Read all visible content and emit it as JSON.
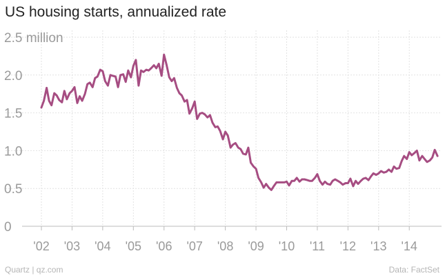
{
  "title": "US housing starts, annualized rate",
  "footer": {
    "source_left": "Quartz | qz.com",
    "source_right": "Data: FactSet"
  },
  "colors": {
    "series": "#a64d82",
    "grid": "#e2e2e2",
    "axis": "#bbbbbb",
    "text": "#222222",
    "tick": "#9a9a9a"
  },
  "chart_data": {
    "type": "line",
    "title": "US housing starts, annualized rate",
    "xlabel": "",
    "ylabel": "",
    "ylim": [
      0,
      2.5
    ],
    "xlim": [
      2002.0,
      2014.85
    ],
    "grid": true,
    "y_ticks": [
      {
        "value": 2.5,
        "label": "2.5 million"
      },
      {
        "value": 2.0,
        "label": "2.0"
      },
      {
        "value": 1.5,
        "label": "1.5"
      },
      {
        "value": 1.0,
        "label": "1.0"
      },
      {
        "value": 0.5,
        "label": "0.5"
      },
      {
        "value": 0,
        "label": "0"
      }
    ],
    "x_ticks": [
      {
        "value": 2002,
        "label": "'02"
      },
      {
        "value": 2003,
        "label": "'03"
      },
      {
        "value": 2004,
        "label": "'04"
      },
      {
        "value": 2005,
        "label": "'05"
      },
      {
        "value": 2006,
        "label": "'06"
      },
      {
        "value": 2007,
        "label": "'07"
      },
      {
        "value": 2008,
        "label": "'08"
      },
      {
        "value": 2009,
        "label": "'09"
      },
      {
        "value": 2010,
        "label": "'10"
      },
      {
        "value": 2011,
        "label": "'11"
      },
      {
        "value": 2012,
        "label": "'12"
      },
      {
        "value": 2013,
        "label": "'13"
      },
      {
        "value": 2014,
        "label": "'14"
      }
    ],
    "series": [
      {
        "values": [
          [
            2002.0,
            1.57
          ],
          [
            2002.08,
            1.66
          ],
          [
            2002.17,
            1.83
          ],
          [
            2002.25,
            1.66
          ],
          [
            2002.33,
            1.6
          ],
          [
            2002.42,
            1.76
          ],
          [
            2002.5,
            1.73
          ],
          [
            2002.58,
            1.67
          ],
          [
            2002.67,
            1.64
          ],
          [
            2002.75,
            1.79
          ],
          [
            2002.83,
            1.68
          ],
          [
            2002.92,
            1.76
          ],
          [
            2003.0,
            1.79
          ],
          [
            2003.08,
            1.84
          ],
          [
            2003.17,
            1.63
          ],
          [
            2003.25,
            1.72
          ],
          [
            2003.33,
            1.66
          ],
          [
            2003.42,
            1.75
          ],
          [
            2003.5,
            1.88
          ],
          [
            2003.58,
            1.9
          ],
          [
            2003.67,
            1.84
          ],
          [
            2003.75,
            1.96
          ],
          [
            2003.83,
            1.98
          ],
          [
            2003.92,
            2.07
          ],
          [
            2004.0,
            2.05
          ],
          [
            2004.08,
            1.92
          ],
          [
            2004.17,
            1.86
          ],
          [
            2004.25,
            2.0
          ],
          [
            2004.33,
            1.99
          ],
          [
            2004.42,
            1.98
          ],
          [
            2004.5,
            1.84
          ],
          [
            2004.58,
            2.0
          ],
          [
            2004.67,
            2.01
          ],
          [
            2004.75,
            1.91
          ],
          [
            2004.83,
            2.06
          ],
          [
            2004.92,
            1.97
          ],
          [
            2005.0,
            2.12
          ],
          [
            2005.08,
            2.2
          ],
          [
            2005.17,
            1.86
          ],
          [
            2005.25,
            2.06
          ],
          [
            2005.33,
            2.04
          ],
          [
            2005.42,
            2.07
          ],
          [
            2005.5,
            2.06
          ],
          [
            2005.58,
            2.09
          ],
          [
            2005.67,
            2.13
          ],
          [
            2005.75,
            2.09
          ],
          [
            2005.83,
            2.15
          ],
          [
            2005.92,
            1.99
          ],
          [
            2006.0,
            2.27
          ],
          [
            2006.08,
            2.14
          ],
          [
            2006.17,
            1.97
          ],
          [
            2006.25,
            1.92
          ],
          [
            2006.33,
            1.96
          ],
          [
            2006.42,
            1.83
          ],
          [
            2006.5,
            1.76
          ],
          [
            2006.58,
            1.73
          ],
          [
            2006.67,
            1.65
          ],
          [
            2006.75,
            1.67
          ],
          [
            2006.83,
            1.49
          ],
          [
            2006.92,
            1.56
          ],
          [
            2007.0,
            1.65
          ],
          [
            2007.08,
            1.42
          ],
          [
            2007.17,
            1.49
          ],
          [
            2007.25,
            1.5
          ],
          [
            2007.33,
            1.48
          ],
          [
            2007.42,
            1.44
          ],
          [
            2007.5,
            1.47
          ],
          [
            2007.58,
            1.37
          ],
          [
            2007.67,
            1.31
          ],
          [
            2007.75,
            1.32
          ],
          [
            2007.83,
            1.26
          ],
          [
            2007.92,
            1.15
          ],
          [
            2008.0,
            1.25
          ],
          [
            2008.08,
            1.2
          ],
          [
            2008.17,
            1.04
          ],
          [
            2008.25,
            1.08
          ],
          [
            2008.33,
            1.1
          ],
          [
            2008.42,
            1.04
          ],
          [
            2008.5,
            1.02
          ],
          [
            2008.58,
            0.96
          ],
          [
            2008.67,
            0.95
          ],
          [
            2008.75,
            1.04
          ],
          [
            2008.83,
            0.84
          ],
          [
            2008.92,
            0.79
          ],
          [
            2009.0,
            0.76
          ],
          [
            2009.08,
            0.64
          ],
          [
            2009.17,
            0.58
          ],
          [
            2009.25,
            0.51
          ],
          [
            2009.33,
            0.56
          ],
          [
            2009.42,
            0.51
          ],
          [
            2009.5,
            0.48
          ],
          [
            2009.58,
            0.53
          ],
          [
            2009.67,
            0.58
          ],
          [
            2009.75,
            0.58
          ],
          [
            2009.83,
            0.58
          ],
          [
            2009.92,
            0.58
          ],
          [
            2010.0,
            0.59
          ],
          [
            2010.08,
            0.54
          ],
          [
            2010.17,
            0.6
          ],
          [
            2010.25,
            0.6
          ],
          [
            2010.33,
            0.64
          ],
          [
            2010.42,
            0.59
          ],
          [
            2010.5,
            0.62
          ],
          [
            2010.58,
            0.62
          ],
          [
            2010.67,
            0.61
          ],
          [
            2010.75,
            0.6
          ],
          [
            2010.83,
            0.6
          ],
          [
            2010.92,
            0.64
          ],
          [
            2011.0,
            0.69
          ],
          [
            2011.08,
            0.6
          ],
          [
            2011.17,
            0.55
          ],
          [
            2011.25,
            0.59
          ],
          [
            2011.33,
            0.56
          ],
          [
            2011.42,
            0.55
          ],
          [
            2011.5,
            0.6
          ],
          [
            2011.58,
            0.62
          ],
          [
            2011.67,
            0.6
          ],
          [
            2011.75,
            0.58
          ],
          [
            2011.83,
            0.55
          ],
          [
            2011.92,
            0.57
          ],
          [
            2012.0,
            0.57
          ],
          [
            2012.08,
            0.63
          ],
          [
            2012.17,
            0.53
          ],
          [
            2012.25,
            0.6
          ],
          [
            2012.33,
            0.56
          ],
          [
            2012.42,
            0.6
          ],
          [
            2012.5,
            0.63
          ],
          [
            2012.58,
            0.64
          ],
          [
            2012.67,
            0.61
          ],
          [
            2012.75,
            0.66
          ],
          [
            2012.83,
            0.7
          ],
          [
            2012.92,
            0.68
          ],
          [
            2013.0,
            0.7
          ],
          [
            2013.08,
            0.73
          ],
          [
            2013.17,
            0.71
          ],
          [
            2013.25,
            0.72
          ],
          [
            2013.33,
            0.75
          ],
          [
            2013.42,
            0.72
          ],
          [
            2013.5,
            0.79
          ],
          [
            2013.58,
            0.76
          ],
          [
            2013.67,
            0.77
          ],
          [
            2013.75,
            0.86
          ],
          [
            2013.83,
            0.93
          ],
          [
            2013.92,
            0.89
          ],
          [
            2014.0,
            0.98
          ],
          [
            2014.08,
            0.94
          ],
          [
            2014.17,
            0.97
          ],
          [
            2014.25,
            1.0
          ],
          [
            2014.33,
            0.87
          ],
          [
            2014.42,
            0.93
          ],
          [
            2014.5,
            0.89
          ],
          [
            2014.58,
            0.85
          ],
          [
            2014.67,
            0.87
          ],
          [
            2014.75,
            0.91
          ],
          [
            2014.83,
            1.01
          ],
          [
            2014.92,
            0.93
          ]
        ]
      }
    ]
  }
}
